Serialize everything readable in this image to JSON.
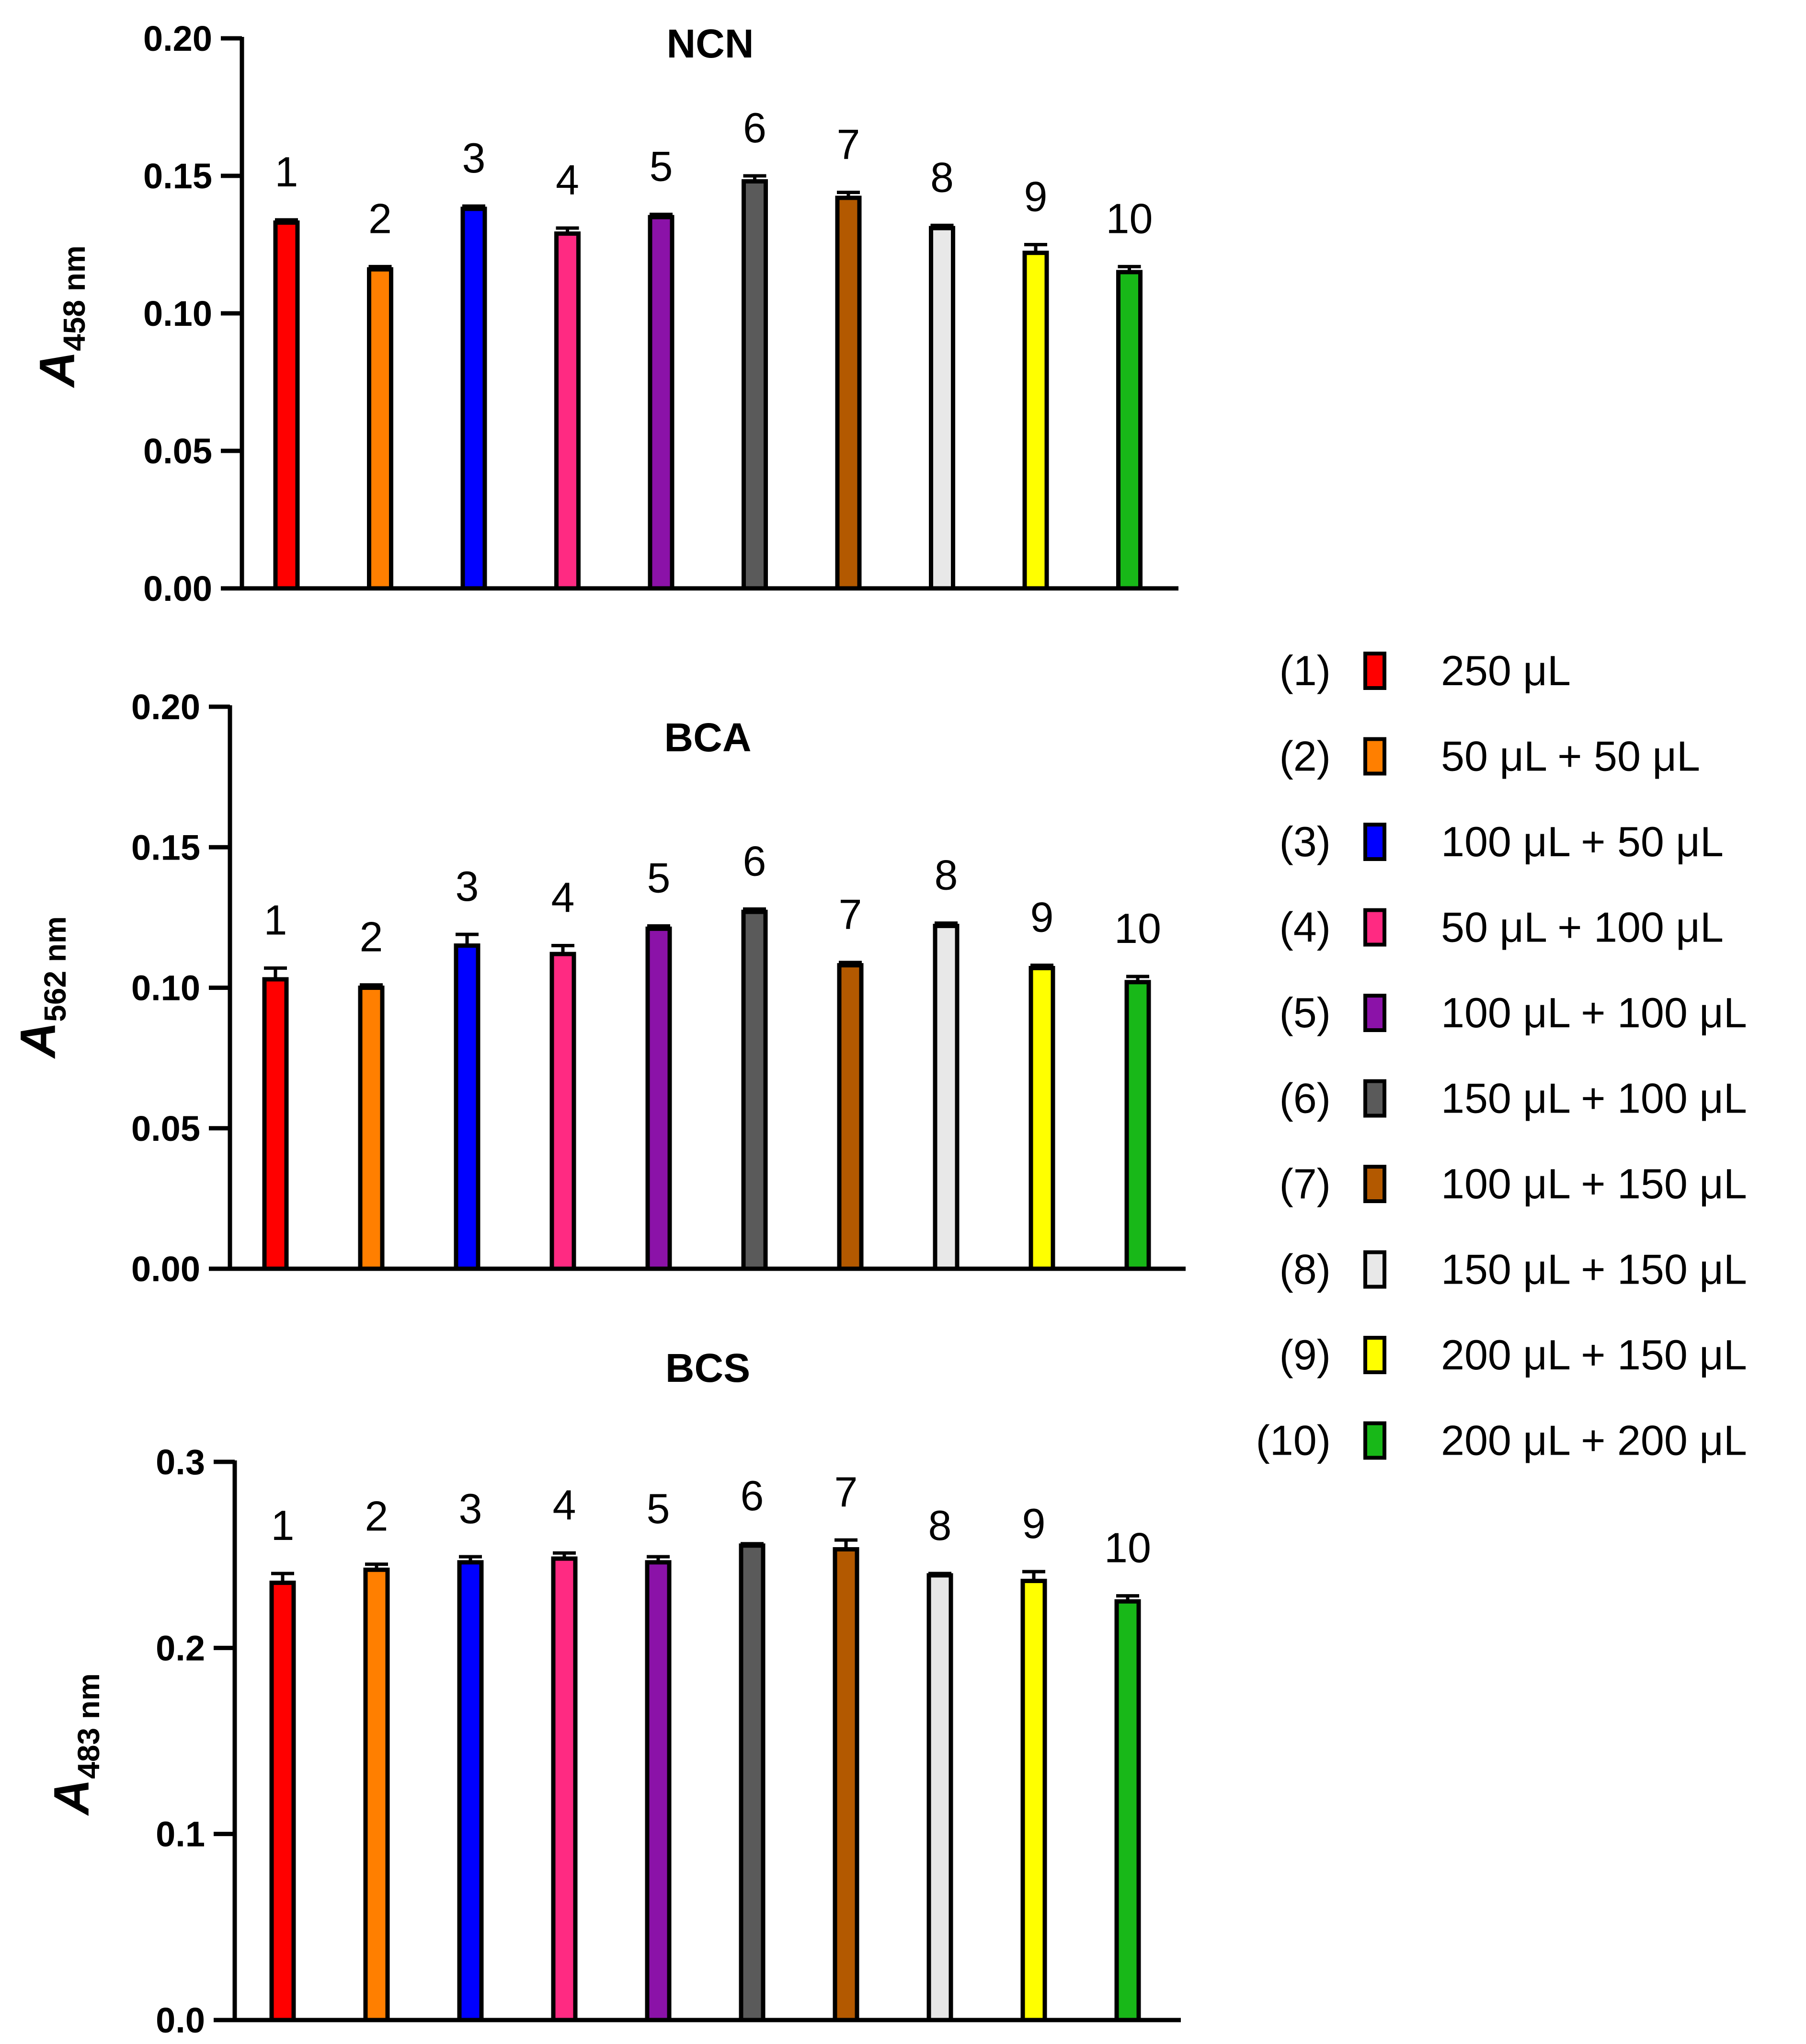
{
  "legend": {
    "items": [
      {
        "num": "(1)",
        "label": "250 μL",
        "color": "#ff0000"
      },
      {
        "num": "(2)",
        "label": "50 μL + 50 μL",
        "color": "#ff7f00"
      },
      {
        "num": "(3)",
        "label": "100 μL + 50 μL",
        "color": "#0000ff"
      },
      {
        "num": "(4)",
        "label": "50 μL + 100 μL",
        "color": "#ff2a82"
      },
      {
        "num": "(5)",
        "label": "100 μL + 100 μL",
        "color": "#8b12a8"
      },
      {
        "num": "(6)",
        "label": "150 μL + 100 μL",
        "color": "#5a5a5a"
      },
      {
        "num": "(7)",
        "label": "100 μL + 150 μL",
        "color": "#b35900"
      },
      {
        "num": "(8)",
        "label": "150 μL + 150 μL",
        "color": "#e8e8e8"
      },
      {
        "num": "(9)",
        "label": "200 μL + 150 μL",
        "color": "#ffff00"
      },
      {
        "num": "(10)",
        "label": "200 μL + 200 μL",
        "color": "#18b818"
      }
    ]
  },
  "chart_data": [
    {
      "type": "bar",
      "title": "NCN",
      "ylabel_italic": "A",
      "ylabel_sub": "458 nm",
      "ylim": [
        0,
        0.2
      ],
      "yticks": [
        "0.00",
        "0.05",
        "0.10",
        "0.15",
        "0.20"
      ],
      "categories": [
        "1",
        "2",
        "3",
        "4",
        "5",
        "6",
        "7",
        "8",
        "9",
        "10"
      ],
      "values": [
        0.133,
        0.116,
        0.138,
        0.129,
        0.135,
        0.148,
        0.142,
        0.131,
        0.122,
        0.115
      ],
      "errors": [
        0.001,
        0.001,
        0.001,
        0.002,
        0.001,
        0.002,
        0.002,
        0.001,
        0.003,
        0.002
      ]
    },
    {
      "type": "bar",
      "title": "BCA",
      "ylabel_italic": "A",
      "ylabel_sub": "562 nm",
      "ylim": [
        0,
        0.2
      ],
      "yticks": [
        "0.00",
        "0.05",
        "0.10",
        "0.15",
        "0.20"
      ],
      "categories": [
        "1",
        "2",
        "3",
        "4",
        "5",
        "6",
        "7",
        "8",
        "9",
        "10"
      ],
      "values": [
        0.103,
        0.1,
        0.115,
        0.112,
        0.121,
        0.127,
        0.108,
        0.122,
        0.107,
        0.102
      ],
      "errors": [
        0.004,
        0.001,
        0.004,
        0.003,
        0.001,
        0.001,
        0.001,
        0.001,
        0.001,
        0.002
      ]
    },
    {
      "type": "bar",
      "title": "BCS",
      "ylabel_italic": "A",
      "ylabel_sub": "483 nm",
      "ylim": [
        0,
        0.3
      ],
      "yticks": [
        "0.0",
        "0.1",
        "0.2",
        "0.3"
      ],
      "categories": [
        "1",
        "2",
        "3",
        "4",
        "5",
        "6",
        "7",
        "8",
        "9",
        "10"
      ],
      "values": [
        0.235,
        0.242,
        0.246,
        0.248,
        0.246,
        0.255,
        0.253,
        0.239,
        0.236,
        0.225
      ],
      "errors": [
        0.005,
        0.003,
        0.003,
        0.003,
        0.003,
        0.001,
        0.005,
        0.001,
        0.005,
        0.003
      ]
    }
  ]
}
